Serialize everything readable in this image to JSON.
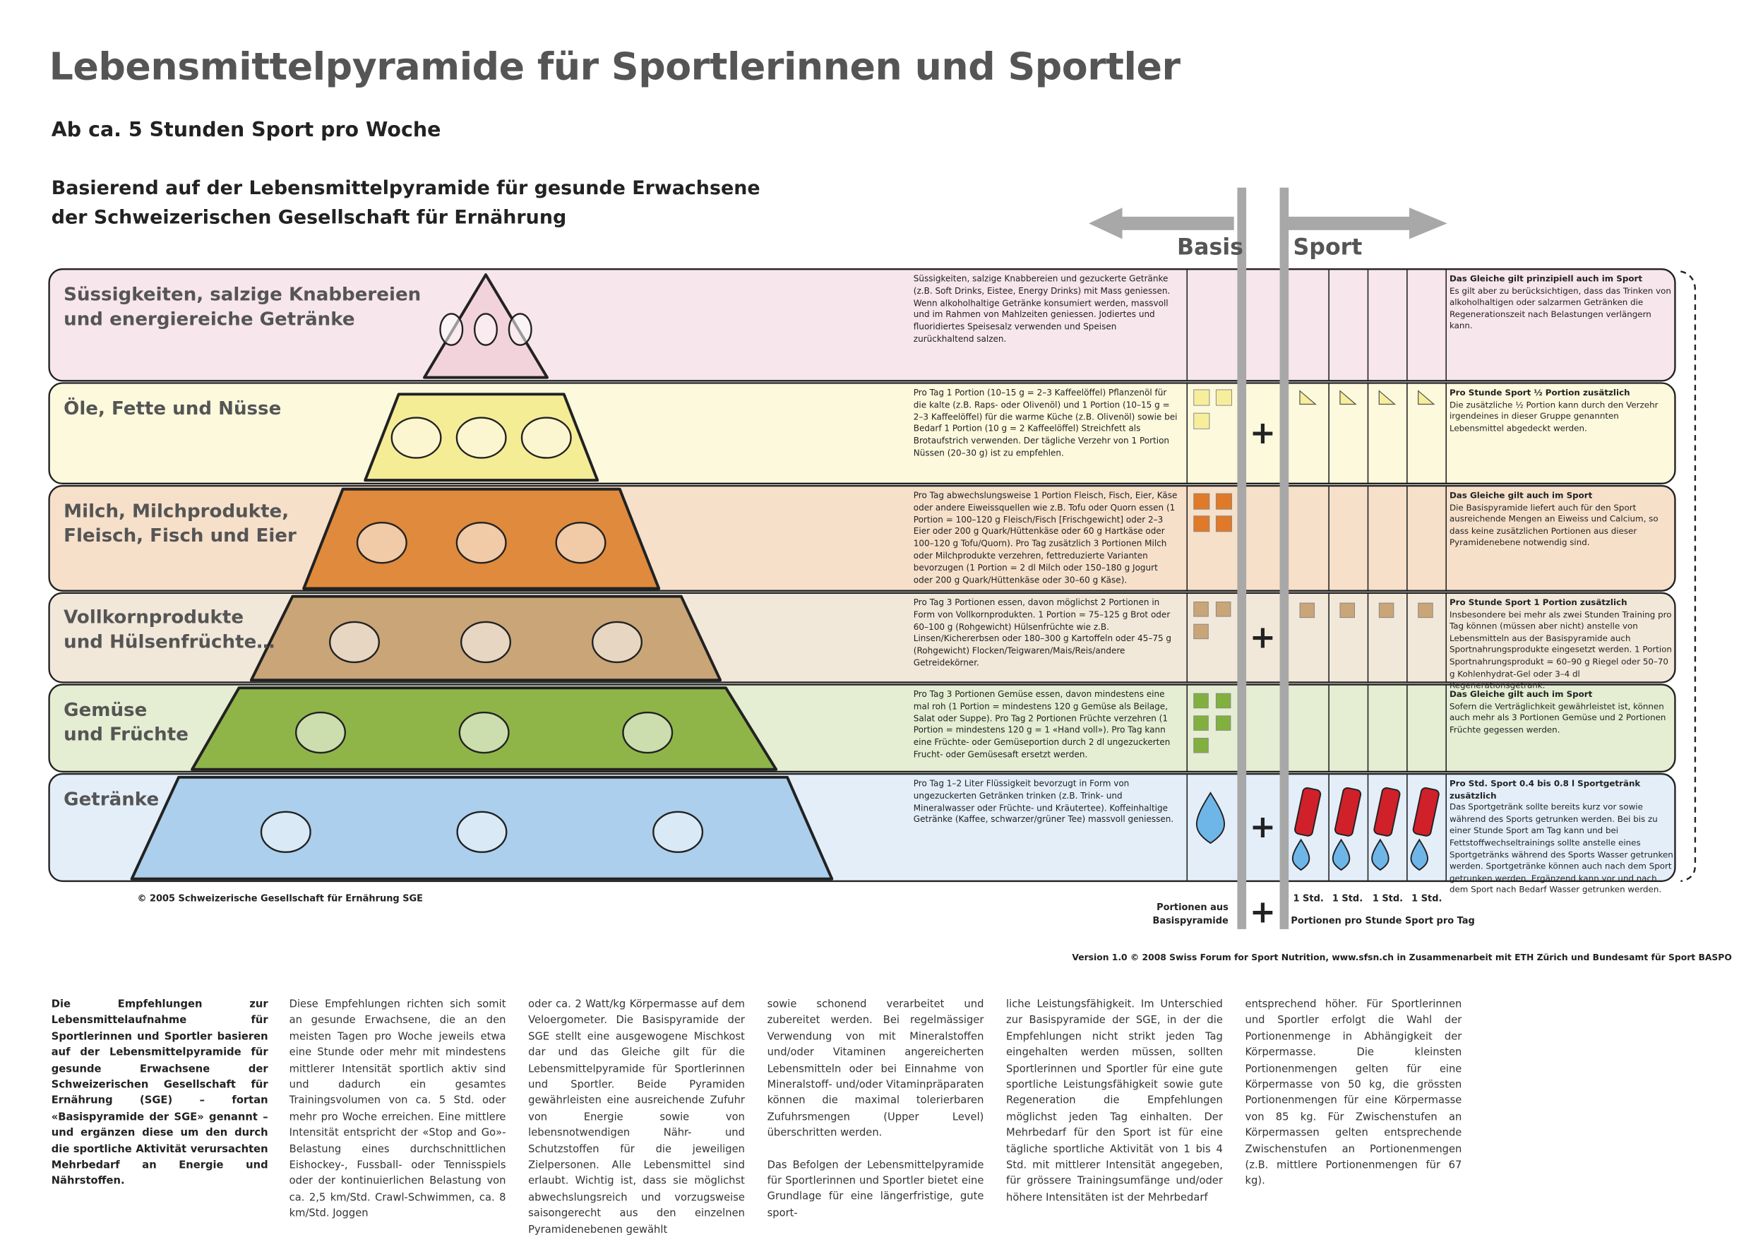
{
  "header": {
    "title": "Lebensmittelpyramide für Sportlerinnen und Sportler",
    "subtitle": "Ab ca. 5 Stunden Sport pro Woche",
    "basis_lines": [
      "Basierend auf der Lebensmittelpyramide für gesunde Erwachsene",
      "der Schweizerischen Gesellschaft für Ernährung"
    ]
  },
  "labels": {
    "basis": "Basis",
    "sport": "Sport",
    "plus": "+"
  },
  "rows": [
    {
      "label": [
        "Süssigkeiten, salzige Knabbereien",
        "und energiereiche Getränke"
      ],
      "basis_text": "Süssigkeiten, salzige Knabbereien und gezuckerte Getränke (z.B. Soft Drinks, Eistee, Energy Drinks) mit Mass geniessen. Wenn alkoholhaltige Getränke konsumiert werden, massvoll und im Rahmen von Mahlzeiten geniessen. Jodiertes und fluoridiertes Speisesalz verwenden und Speisen zurückhaltend salzen.",
      "sport_title": "Das Gleiche gilt prinzipiell auch im Sport",
      "sport_text": "Es gilt aber zu berücksichtigen, dass das Trinken von alkoholhaltigen oder salzarmen Getränken die Regenerationszeit nach Belastungen verlängern kann."
    },
    {
      "label": [
        "Öle, Fette und Nüsse"
      ],
      "basis_text": "Pro Tag 1 Portion (10–15 g = 2–3 Kaffeelöffel) Pflanzenöl für die kalte (z.B. Raps- oder Olivenöl) und 1 Portion (10–15 g = 2–3 Kaffeelöffel) für die warme Küche (z.B. Olivenöl) sowie bei Bedarf 1 Portion (10 g = 2 Kaffeelöffel) Streichfett als Brotaufstrich verwenden. Der tägliche Verzehr von 1 Portion Nüssen (20–30 g) ist zu empfehlen.",
      "sport_title": "Pro Stunde Sport ½ Portion zusätzlich",
      "sport_text": "Die zusätzliche ½ Portion kann durch den Verzehr irgendeines in dieser Gruppe genannten Lebensmittel abgedeckt werden."
    },
    {
      "label": [
        "Milch, Milchprodukte,",
        "Fleisch, Fisch und Eier"
      ],
      "basis_text": "Pro Tag abwechslungsweise 1 Portion Fleisch, Fisch, Eier, Käse oder andere Eiweissquellen wie z.B. Tofu oder Quorn essen (1 Portion = 100–120 g Fleisch/Fisch [Frischgewicht] oder 2–3 Eier oder 200 g Quark/Hüttenkäse oder 60 g Hartkäse oder 100–120 g Tofu/Quorn). Pro Tag zusätzlich 3 Portionen Milch oder Milchprodukte verzehren, fettreduzierte Varianten bevorzugen (1 Portion = 2 dl Milch oder 150–180 g Jogurt oder 200 g Quark/Hüttenkäse oder 30–60 g Käse).",
      "sport_title": "Das Gleiche gilt auch im Sport",
      "sport_text": "Die Basispyramide liefert auch für den Sport ausreichende Mengen an Eiweiss und Calcium, so dass keine zusätzlichen Portionen aus dieser Pyramidenebene notwendig sind."
    },
    {
      "label": [
        "Vollkornprodukte",
        "und Hülsenfrüchte…"
      ],
      "basis_text": "Pro Tag 3 Portionen essen, davon möglichst 2 Portionen in Form von Vollkornprodukten. 1 Portion = 75–125 g Brot oder 60–100 g (Rohgewicht) Hülsenfrüchte wie z.B. Linsen/Kichererbsen oder 180–300 g Kartoffeln oder 45–75 g (Rohgewicht) Flocken/Teigwaren/Mais/Reis/andere Getreidekörner.",
      "sport_title": "Pro Stunde Sport 1 Portion zusätzlich",
      "sport_text": "Insbesondere bei mehr als zwei Stunden Training pro Tag können (müssen aber nicht) anstelle von Lebensmitteln aus der Basispyramide auch Sportnahrungsprodukte eingesetzt werden. 1 Portion Sportnahrungsprodukt = 60–90 g Riegel oder 50–70 g Kohlenhydrat-Gel oder 3–4 dl Regenerationsgetränk."
    },
    {
      "label": [
        "Gemüse",
        "und Früchte"
      ],
      "basis_text": "Pro Tag 3 Portionen Gemüse essen, davon mindestens eine mal roh (1 Portion = mindestens 120 g Gemüse als Beilage, Salat oder Suppe). Pro Tag 2 Portionen Früchte verzehren (1 Portion = mindestens 120 g = 1 «Hand voll»). Pro Tag kann eine Früchte- oder Gemüseportion durch 2 dl ungezuckerten Frucht- oder Gemüsesaft ersetzt werden.",
      "sport_title": "Das Gleiche gilt auch im Sport",
      "sport_text": "Sofern die Verträglichkeit gewährleistet ist, können auch mehr als 3 Portionen Gemüse und 2 Portionen Früchte gegessen werden."
    },
    {
      "label": [
        "Getränke"
      ],
      "basis_text": "Pro Tag 1–2 Liter Flüssigkeit bevorzugt in Form von ungezuckerten Getränken trinken (z.B. Trink- und Mineralwasser oder Früchte- und Kräutertee). Koffeinhaltige Getränke (Kaffee, schwarzer/grüner Tee) massvoll geniessen.",
      "sport_title": "Pro Std. Sport 0.4 bis 0.8 l Sportgetränk zusätzlich",
      "sport_text": "Das Sportgetränk sollte bereits kurz vor sowie während des Sports getrunken werden. Bei bis zu einer Stunde Sport am Tag kann und bei Fettstoffwechseltrainings sollte anstelle eines Sportgetränks während des Sports Wasser getrunken werden. Sportgetränke können auch nach dem Sport getrunken werden. Ergänzend kann vor und nach dem Sport nach Bedarf Wasser getrunken werden."
    }
  ],
  "copyright": "© 2005 Schweizerische Gesellschaft für Ernährung SGE",
  "footer": {
    "basis_portions": "Portionen aus Basispyramide",
    "hours": [
      "1 Std.",
      "1 Std.",
      "1 Std.",
      "1 Std."
    ],
    "sport_portions": "Portionen pro Stunde Sport pro Tag",
    "version": "Version 1.0 © 2008 Swiss Forum for Sport Nutrition, www.sfsn.ch in Zusammenarbeit mit ETH Zürich und Bundesamt für Sport BASPO"
  },
  "body": {
    "columns": [
      [
        "Die Empfehlungen zur Lebensmittelaufnahme für Sportlerinnen und Sportler basieren auf der Lebensmittelpyramide für gesunde Erwachsene der Schweizerischen Gesellschaft für Ernährung (SGE) – fortan «Basispyramide der SGE» genannt – und ergänzen diese um den durch die sportliche Aktivität verursachten Mehrbedarf an Energie und Nährstoffen."
      ],
      [
        "Diese Empfehlungen richten sich somit an gesunde Erwachsene, die an den meisten Tagen pro Woche jeweils etwa eine Stunde oder mehr mit mindestens mittlerer Intensität sportlich aktiv sind und dadurch ein gesamtes Trainingsvolumen von ca. 5 Std. oder mehr pro Woche erreichen. Eine mittlere Intensität entspricht der «Stop and Go»-Belastung eines durchschnittlichen Eishockey-, Fussball- oder Tennisspiels oder der kontinuierlichen Belastung von ca. 2,5 km/Std. Crawl-Schwimmen, ca. 8 km/Std. Joggen"
      ],
      [
        "oder ca. 2 Watt/kg Körpermasse auf dem Veloergometer. Die Basispyramide der SGE stellt eine ausgewogene Mischkost dar und das Gleiche gilt für die Lebensmittelpyramide für Sportlerinnen und Sportler. Beide Pyramiden gewährleisten eine ausreichende Zufuhr von Energie sowie von lebensnotwendigen Nähr- und Schutzstoffen für die jeweiligen Zielpersonen. Alle Lebensmittel sind erlaubt. Wichtig ist, dass sie möglichst abwechslungsreich und vorzugsweise saisongerecht aus den einzelnen Pyramidenebenen gewählt"
      ],
      [
        "sowie schonend verarbeitet und zubereitet werden. Bei regelmässiger Verwendung von mit Mineralstoffen und/oder Vitaminen angereicherten Lebensmitteln oder bei Einnahme von Mineralstoff- und/oder Vitaminpräparaten können die maximal tolerierbaren Zufuhrsmengen (Upper Level) überschritten werden.",
        "Das Befolgen der Lebensmittelpyramide für Sportlerinnen und Sportler bietet eine Grundlage für eine längerfristige, gute sport-"
      ],
      [
        "liche Leistungsfähigkeit. Im Unterschied zur Basispyramide der SGE, in der die Empfehlungen nicht strikt jeden Tag eingehalten werden müssen, sollten Sportlerinnen und Sportler für eine gute sportliche Leistungsfähigkeit sowie gute Regeneration die Empfehlungen möglichst jeden Tag einhalten. Der Mehrbedarf für den Sport ist für eine tägliche sportliche Aktivität von 1 bis 4 Std. mit mittlerer Intensität angegeben, für grössere Trainingsumfänge und/oder höhere Intensitäten ist der Mehrbedarf"
      ],
      [
        "entsprechend höher. Für Sportlerinnen und Sportler erfolgt die Wahl der Portionenmenge in Abhängigkeit der Körpermasse. Die kleinsten Portionenmengen gelten für eine Körpermasse von 50 kg, die grössten Portionenmengen für eine Körpermasse von 85 kg. Für Zwischenstufen an Körpermassen gelten entsprechende Zwischenstufen an Portionenmengen (z.B. mittlere Portionenmengen für 67 kg)."
      ]
    ]
  }
}
